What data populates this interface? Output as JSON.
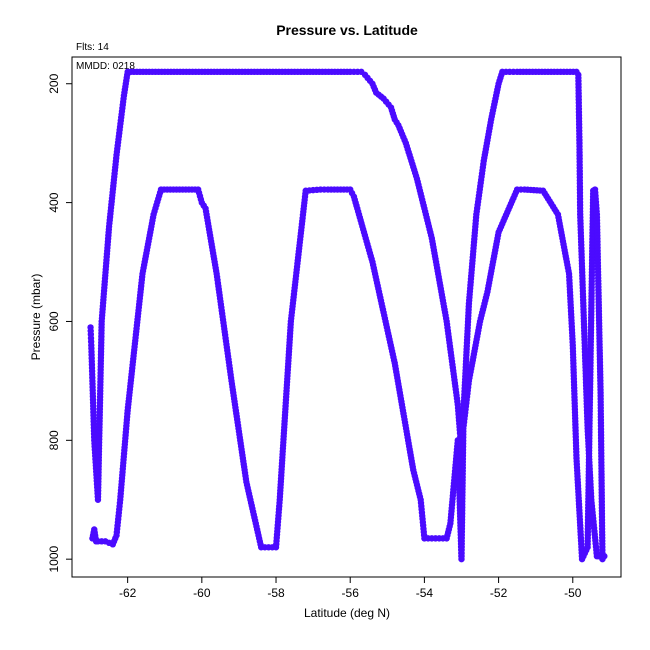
{
  "chart_data": {
    "type": "scatter",
    "title": "Pressure vs. Latitude",
    "xlabel": "Latitude (deg N)",
    "ylabel": "Pressure (mbar)",
    "annotations": [
      "Flts: 14",
      "MMDD: 0218"
    ],
    "xlim": [
      -63.5,
      -48.7
    ],
    "ylim": [
      1030,
      155
    ],
    "y_inverted": true,
    "x_ticks": [
      -62,
      -60,
      -58,
      -56,
      -54,
      -52,
      -50
    ],
    "y_ticks": [
      200,
      400,
      600,
      800,
      1000
    ],
    "grid": false,
    "point_color": "#4B0BFF",
    "series": [
      {
        "x": [
          -62.95,
          -62.9,
          -62.85,
          -62.8,
          -62.6,
          -62.4,
          -62.3,
          -62.2,
          -62.0,
          -61.6,
          -61.3,
          -61.1,
          -60.6,
          -60.1,
          -60.0,
          -59.9,
          -59.6,
          -59.2,
          -58.8,
          -58.4,
          -58.3,
          -58.0,
          -57.9,
          -57.6,
          -57.2,
          -56.8,
          -56.6,
          -56.0,
          -55.9,
          -55.4,
          -54.8,
          -54.3,
          -54.1,
          -54.0,
          -53.8,
          -53.4,
          -53.3,
          -53.1,
          -53.0,
          -52.95,
          -52.8,
          -52.5,
          -52.3,
          -52.0,
          -51.5,
          -51.3,
          -50.8,
          -50.4,
          -50.1,
          -50.0,
          -49.9,
          -49.75,
          -49.6,
          -49.45,
          -49.4,
          -49.35,
          -49.25,
          -49.2
        ],
        "y": [
          965,
          950,
          970,
          970,
          970,
          975,
          960,
          900,
          750,
          520,
          420,
          378,
          378,
          378,
          400,
          410,
          520,
          700,
          870,
          980,
          980,
          980,
          900,
          600,
          380,
          378,
          378,
          378,
          390,
          500,
          670,
          850,
          900,
          965,
          965,
          965,
          940,
          800,
          1000,
          780,
          700,
          600,
          550,
          450,
          378,
          378,
          380,
          420,
          520,
          640,
          830,
          1000,
          980,
          380,
          378,
          420,
          720,
          1000
        ]
      },
      {
        "x": [
          -63.0,
          -62.98,
          -62.95,
          -62.9,
          -62.8,
          -62.7,
          -62.5,
          -62.3,
          -62.1,
          -62.0,
          -61.5,
          -60.0,
          -58.0,
          -56.0,
          -55.7,
          -55.6,
          -55.4,
          -55.3,
          -55.1,
          -54.9,
          -54.8,
          -54.7,
          -54.5,
          -54.2,
          -53.8,
          -53.4,
          -53.1,
          -53.0,
          -52.8,
          -52.6,
          -52.4,
          -52.2,
          -52.0,
          -51.9,
          -51.5,
          -50.5,
          -49.9,
          -49.85,
          -49.82,
          -49.8,
          -49.7,
          -49.6,
          -49.5,
          -49.35,
          -49.3,
          -49.25,
          -49.2,
          -49.15
        ],
        "y": [
          610,
          640,
          700,
          800,
          900,
          600,
          440,
          320,
          220,
          180,
          180,
          180,
          180,
          180,
          180,
          185,
          200,
          215,
          225,
          240,
          260,
          270,
          300,
          360,
          460,
          600,
          740,
          820,
          570,
          420,
          330,
          260,
          200,
          180,
          180,
          180,
          180,
          185,
          300,
          420,
          600,
          780,
          900,
          995,
          995,
          995,
          995,
          995
        ]
      }
    ]
  }
}
